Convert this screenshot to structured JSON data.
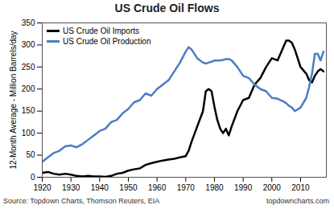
{
  "chart_data": {
    "type": "line",
    "title": "US Crude Oil Flows",
    "ylabel": "12-Month Average - Million Barrels/day",
    "source": "Source: Topdown Charts, Thomson Reuters, EIA",
    "credit": "topdowncharts.com",
    "x": [
      1920,
      1922,
      1924,
      1926,
      1928,
      1930,
      1932,
      1934,
      1936,
      1938,
      1940,
      1942,
      1944,
      1946,
      1948,
      1950,
      1952,
      1954,
      1956,
      1958,
      1960,
      1962,
      1964,
      1966,
      1968,
      1970,
      1971,
      1972,
      1974,
      1976,
      1977,
      1978,
      1979,
      1980,
      1981,
      1982,
      1983,
      1984,
      1985,
      1986,
      1988,
      1990,
      1992,
      1994,
      1996,
      1998,
      2000,
      2002,
      2004,
      2005,
      2006,
      2007,
      2008,
      2010,
      2012,
      2013,
      2014,
      2015,
      2016,
      2017,
      2018
    ],
    "series": [
      {
        "name": "US Crude Oil Imports",
        "color": "#000000",
        "values": [
          10,
          12,
          8,
          6,
          8,
          6,
          3,
          2,
          3,
          2,
          2,
          1,
          3,
          8,
          10,
          15,
          18,
          20,
          28,
          32,
          35,
          38,
          40,
          42,
          45,
          48,
          60,
          80,
          115,
          150,
          195,
          200,
          195,
          160,
          130,
          110,
          100,
          110,
          95,
          115,
          150,
          175,
          180,
          210,
          225,
          250,
          270,
          265,
          295,
          310,
          310,
          305,
          290,
          250,
          235,
          220,
          215,
          230,
          240,
          245,
          240
        ]
      },
      {
        "name": "US Crude Oil Production",
        "color": "#4a7dc4",
        "values": [
          35,
          45,
          55,
          60,
          70,
          72,
          68,
          75,
          85,
          95,
          105,
          110,
          125,
          130,
          145,
          155,
          170,
          175,
          190,
          185,
          200,
          210,
          220,
          240,
          260,
          285,
          295,
          290,
          270,
          260,
          258,
          260,
          262,
          265,
          265,
          265,
          266,
          268,
          268,
          265,
          250,
          230,
          225,
          210,
          200,
          195,
          180,
          178,
          172,
          168,
          162,
          158,
          150,
          158,
          180,
          205,
          235,
          280,
          280,
          265,
          285
        ]
      }
    ],
    "xlim": [
      1920,
      2019
    ],
    "xticks": [
      1920,
      1930,
      1940,
      1950,
      1960,
      1970,
      1980,
      1990,
      2000,
      2010
    ],
    "ylim": [
      0,
      350
    ],
    "yticks": [
      0,
      50,
      100,
      150,
      200,
      250,
      300,
      350
    ],
    "grid": false,
    "legend": "top-left"
  }
}
